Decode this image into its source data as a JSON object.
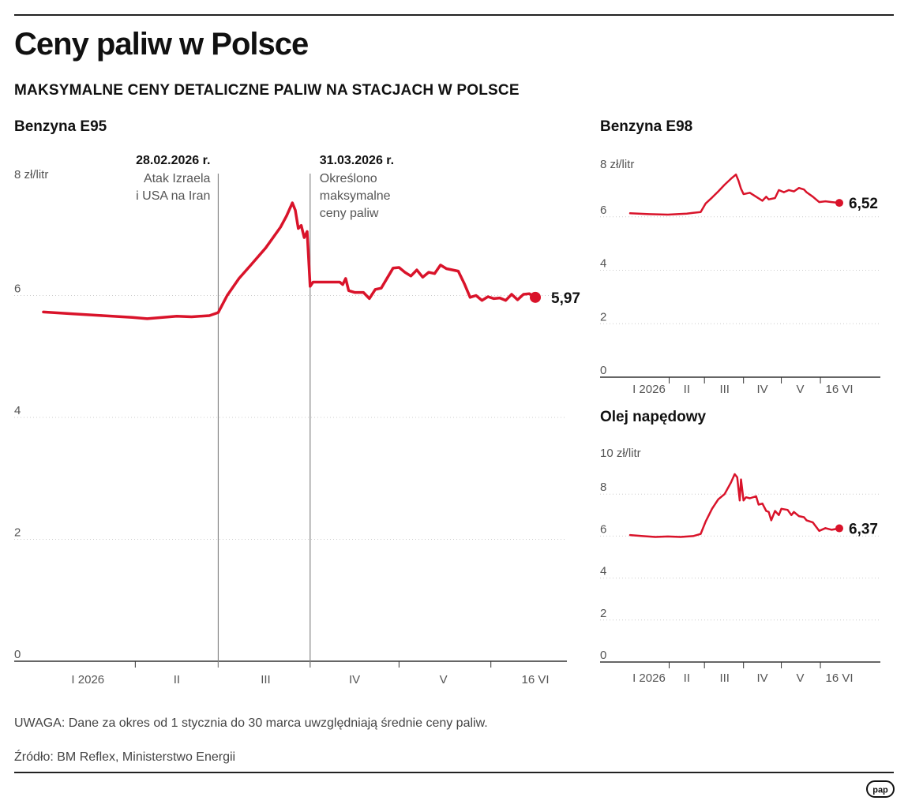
{
  "header": {
    "title": "Ceny paliw w Polsce",
    "subtitle": "MAKSYMALNE CENY DETALICZNE PALIW NA STACJACH W POLSCE"
  },
  "footer": {
    "note": "UWAGA: Dane za okres od 1 stycznia do 30 marca uwzględniają średnie ceny paliw.",
    "source": "Źródło: BM Reflex, Ministerstwo Energii",
    "logo": "pap"
  },
  "colors": {
    "line": "#d9132a",
    "grid": "#cccccc",
    "axis": "#333333",
    "event_line": "#888888"
  },
  "chart_data": [
    {
      "id": "e95",
      "type": "line",
      "title": "Benzyna E95",
      "unit_label": "8 zł/litr",
      "ylim": [
        0,
        8
      ],
      "yticks": [
        0,
        2,
        4,
        6,
        8
      ],
      "xlim": [
        0,
        181
      ],
      "grid": true,
      "month_ticks": [
        {
          "label": "I 2026",
          "x": 15
        },
        {
          "label": "II",
          "x": 45
        },
        {
          "label": "III",
          "x": 75
        },
        {
          "label": "IV",
          "x": 105
        },
        {
          "label": "V",
          "x": 135
        },
        {
          "label": "16 VI",
          "x": 166
        }
      ],
      "month_boundaries": [
        31,
        59,
        90,
        120,
        151
      ],
      "annotations": [
        {
          "x": 59,
          "date": "28.02.2026 r.",
          "text": [
            "Atak Izraela",
            "i USA na Iran"
          ],
          "align": "end"
        },
        {
          "x": 90,
          "date": "31.03.2026 r.",
          "text": [
            "Określono",
            "maksymalne",
            "ceny paliw"
          ],
          "align": "start"
        }
      ],
      "end_label": "5,97",
      "series": [
        {
          "x": [
            0,
            10,
            20,
            30,
            35,
            45,
            50,
            56,
            59,
            62,
            66,
            70,
            75,
            80,
            82,
            84,
            85,
            86,
            87,
            88,
            89,
            90,
            91,
            95,
            100,
            101,
            102,
            103,
            105,
            108,
            110,
            112,
            114,
            118,
            120,
            122,
            124,
            126,
            128,
            130,
            132,
            134,
            136,
            140,
            142,
            144,
            146,
            148,
            150,
            152,
            154,
            156,
            158,
            160,
            162,
            164,
            166
          ],
          "y": [
            5.73,
            5.7,
            5.67,
            5.64,
            5.62,
            5.66,
            5.65,
            5.67,
            5.72,
            6.0,
            6.28,
            6.5,
            6.78,
            7.12,
            7.3,
            7.52,
            7.4,
            7.1,
            7.15,
            6.95,
            7.05,
            6.15,
            6.22,
            6.22,
            6.22,
            6.18,
            6.28,
            6.08,
            6.05,
            6.05,
            5.95,
            6.1,
            6.12,
            6.45,
            6.46,
            6.38,
            6.32,
            6.42,
            6.3,
            6.38,
            6.36,
            6.5,
            6.44,
            6.4,
            6.2,
            5.97,
            6.0,
            5.92,
            5.98,
            5.95,
            5.96,
            5.92,
            6.02,
            5.93,
            6.02,
            6.03,
            5.97
          ]
        }
      ]
    },
    {
      "id": "e98",
      "type": "line",
      "title": "Benzyna E98",
      "unit_label": "8 zł/litr",
      "ylim": [
        0,
        8
      ],
      "yticks": [
        0,
        2,
        4,
        6,
        8
      ],
      "xlim": [
        0,
        181
      ],
      "grid": true,
      "month_ticks": [
        {
          "label": "I 2026",
          "x": 15
        },
        {
          "label": "II",
          "x": 45
        },
        {
          "label": "III",
          "x": 75
        },
        {
          "label": "IV",
          "x": 105
        },
        {
          "label": "V",
          "x": 135
        },
        {
          "label": "16 VI",
          "x": 166
        }
      ],
      "month_boundaries": [
        31,
        59,
        90,
        120,
        151
      ],
      "end_label": "6,52",
      "series": [
        {
          "x": [
            0,
            15,
            30,
            45,
            50,
            56,
            60,
            65,
            70,
            75,
            80,
            84,
            86,
            88,
            90,
            95,
            100,
            105,
            108,
            110,
            115,
            118,
            122,
            126,
            130,
            134,
            138,
            140,
            145,
            150,
            155,
            160,
            166
          ],
          "y": [
            6.13,
            6.1,
            6.08,
            6.12,
            6.15,
            6.18,
            6.5,
            6.72,
            6.95,
            7.2,
            7.42,
            7.58,
            7.35,
            7.05,
            6.85,
            6.9,
            6.75,
            6.6,
            6.75,
            6.65,
            6.7,
            7.0,
            6.92,
            7.0,
            6.95,
            7.08,
            7.02,
            6.92,
            6.75,
            6.55,
            6.58,
            6.55,
            6.52
          ]
        }
      ]
    },
    {
      "id": "diesel",
      "type": "line",
      "title": "Olej napędowy",
      "unit_label": "10 zł/litr",
      "ylim": [
        0,
        10
      ],
      "yticks": [
        0,
        2,
        4,
        6,
        8,
        10
      ],
      "xlim": [
        0,
        181
      ],
      "grid": true,
      "month_ticks": [
        {
          "label": "I 2026",
          "x": 15
        },
        {
          "label": "II",
          "x": 45
        },
        {
          "label": "III",
          "x": 75
        },
        {
          "label": "IV",
          "x": 105
        },
        {
          "label": "V",
          "x": 135
        },
        {
          "label": "16 VI",
          "x": 166
        }
      ],
      "month_boundaries": [
        31,
        59,
        90,
        120,
        151
      ],
      "end_label": "6,37",
      "series": [
        {
          "x": [
            0,
            10,
            20,
            30,
            40,
            50,
            56,
            60,
            65,
            70,
            75,
            80,
            83,
            85,
            87,
            88,
            90,
            92,
            95,
            100,
            102,
            105,
            108,
            110,
            112,
            115,
            118,
            120,
            125,
            128,
            130,
            134,
            138,
            140,
            145,
            150,
            155,
            160,
            166
          ],
          "y": [
            6.05,
            6.0,
            5.96,
            5.98,
            5.96,
            6.0,
            6.1,
            6.7,
            7.3,
            7.75,
            8.0,
            8.55,
            8.95,
            8.8,
            7.7,
            8.7,
            7.7,
            7.85,
            7.8,
            7.9,
            7.5,
            7.55,
            7.2,
            7.15,
            6.75,
            7.2,
            7.0,
            7.3,
            7.25,
            7.0,
            7.15,
            6.95,
            6.9,
            6.75,
            6.65,
            6.25,
            6.38,
            6.3,
            6.37
          ]
        }
      ]
    }
  ]
}
